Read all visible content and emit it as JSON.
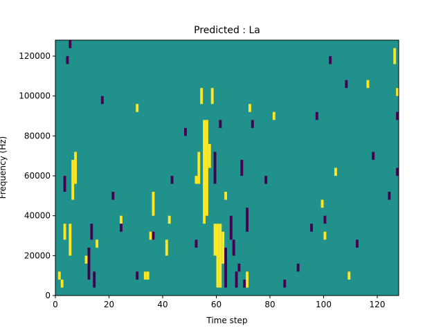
{
  "chart_data": {
    "type": "heatmap",
    "title": "Predicted : La",
    "xlabel": "Time step",
    "ylabel": "Frequency (Hz)",
    "xlim": [
      0,
      128
    ],
    "ylim": [
      0,
      128000
    ],
    "x_ticks": [
      0,
      20,
      40,
      60,
      80,
      100,
      120
    ],
    "y_ticks": [
      0,
      20000,
      40000,
      60000,
      80000,
      100000,
      120000
    ],
    "x_tick_labels": [
      "0",
      "20",
      "40",
      "60",
      "80",
      "100",
      "120"
    ],
    "y_tick_labels": [
      "0",
      "20000",
      "40000",
      "60000",
      "80000",
      "100000",
      "120000"
    ],
    "grid": false,
    "value_levels": [
      -1,
      0,
      1
    ],
    "colormap": {
      "-1": "#440154",
      "0": "#21918c",
      "1": "#fde725"
    },
    "background_value": 0,
    "bin_height_hz": 4000,
    "cells": [
      {
        "t": 60,
        "f0": 4000,
        "f1": 36000,
        "v": 1
      },
      {
        "t": 61,
        "f0": 4000,
        "f1": 36000,
        "v": 1
      },
      {
        "t": 55,
        "f0": 36000,
        "f1": 88000,
        "v": 1
      },
      {
        "t": 56,
        "f0": 40000,
        "f1": 88000,
        "v": 1
      },
      {
        "t": 53,
        "f0": 56000,
        "f1": 72000,
        "v": 1
      },
      {
        "t": 52,
        "f0": 56000,
        "f1": 60000,
        "v": 1
      },
      {
        "t": 57,
        "f0": 64000,
        "f1": 76000,
        "v": 1
      },
      {
        "t": 59,
        "f0": 20000,
        "f1": 36000,
        "v": 1
      },
      {
        "t": 62,
        "f0": 16000,
        "f1": 32000,
        "v": 1
      },
      {
        "t": 54,
        "f0": 96000,
        "f1": 104000,
        "v": 1
      },
      {
        "t": 58,
        "f0": 96000,
        "f1": 104000,
        "v": 1
      },
      {
        "t": 5,
        "f0": 20000,
        "f1": 36000,
        "v": 1
      },
      {
        "t": 6,
        "f0": 48000,
        "f1": 68000,
        "v": 1
      },
      {
        "t": 7,
        "f0": 56000,
        "f1": 72000,
        "v": 1
      },
      {
        "t": 3,
        "f0": 28000,
        "f1": 36000,
        "v": 1
      },
      {
        "t": 1,
        "f0": 8000,
        "f1": 12000,
        "v": 1
      },
      {
        "t": 2,
        "f0": 4000,
        "f1": 8000,
        "v": 1
      },
      {
        "t": 33,
        "f0": 8000,
        "f1": 12000,
        "v": 1
      },
      {
        "t": 34,
        "f0": 8000,
        "f1": 12000,
        "v": 1
      },
      {
        "t": 35,
        "f0": 28000,
        "f1": 32000,
        "v": 1
      },
      {
        "t": 36,
        "f0": 40000,
        "f1": 52000,
        "v": 1
      },
      {
        "t": 41,
        "f0": 20000,
        "f1": 28000,
        "v": 1
      },
      {
        "t": 42,
        "f0": 36000,
        "f1": 40000,
        "v": 1
      },
      {
        "t": 71,
        "f0": 4000,
        "f1": 12000,
        "v": 1
      },
      {
        "t": 72,
        "f0": 92000,
        "f1": 96000,
        "v": 1
      },
      {
        "t": 99,
        "f0": 44000,
        "f1": 48000,
        "v": 1
      },
      {
        "t": 100,
        "f0": 28000,
        "f1": 32000,
        "v": 1
      },
      {
        "t": 126,
        "f0": 116000,
        "f1": 124000,
        "v": 1
      },
      {
        "t": 127,
        "f0": 100000,
        "f1": 104000,
        "v": 1
      },
      {
        "t": 30,
        "f0": 92000,
        "f1": 96000,
        "v": 1
      },
      {
        "t": 24,
        "f0": 36000,
        "f1": 40000,
        "v": 1
      },
      {
        "t": 11,
        "f0": 16000,
        "f1": 20000,
        "v": 1
      },
      {
        "t": 15,
        "f0": 24000,
        "f1": 28000,
        "v": 1
      },
      {
        "t": 63,
        "f0": 48000,
        "f1": 52000,
        "v": 1
      },
      {
        "t": 81,
        "f0": 88000,
        "f1": 92000,
        "v": 1
      },
      {
        "t": 104,
        "f0": 60000,
        "f1": 64000,
        "v": 1
      },
      {
        "t": 109,
        "f0": 8000,
        "f1": 12000,
        "v": 1
      },
      {
        "t": 116,
        "f0": 104000,
        "f1": 108000,
        "v": 1
      },
      {
        "t": 63,
        "f0": 4000,
        "f1": 24000,
        "v": -1
      },
      {
        "t": 67,
        "f0": 4000,
        "f1": 12000,
        "v": -1
      },
      {
        "t": 68,
        "f0": 12000,
        "f1": 16000,
        "v": -1
      },
      {
        "t": 70,
        "f0": 4000,
        "f1": 8000,
        "v": -1
      },
      {
        "t": 59,
        "f0": 56000,
        "f1": 72000,
        "v": -1
      },
      {
        "t": 61,
        "f0": 84000,
        "f1": 88000,
        "v": -1
      },
      {
        "t": 69,
        "f0": 60000,
        "f1": 68000,
        "v": -1
      },
      {
        "t": 65,
        "f0": 28000,
        "f1": 40000,
        "v": -1
      },
      {
        "t": 66,
        "f0": 20000,
        "f1": 28000,
        "v": -1
      },
      {
        "t": 71,
        "f0": 32000,
        "f1": 44000,
        "v": -1
      },
      {
        "t": 73,
        "f0": 84000,
        "f1": 88000,
        "v": -1
      },
      {
        "t": 12,
        "f0": 8000,
        "f1": 24000,
        "v": -1
      },
      {
        "t": 13,
        "f0": 28000,
        "f1": 36000,
        "v": -1
      },
      {
        "t": 14,
        "f0": 4000,
        "f1": 12000,
        "v": -1
      },
      {
        "t": 3,
        "f0": 52000,
        "f1": 60000,
        "v": -1
      },
      {
        "t": 4,
        "f0": 116000,
        "f1": 120000,
        "v": -1
      },
      {
        "t": 5,
        "f0": 124000,
        "f1": 128000,
        "v": -1
      },
      {
        "t": 17,
        "f0": 96000,
        "f1": 100000,
        "v": -1
      },
      {
        "t": 24,
        "f0": 32000,
        "f1": 36000,
        "v": -1
      },
      {
        "t": 30,
        "f0": 8000,
        "f1": 12000,
        "v": -1
      },
      {
        "t": 43,
        "f0": 56000,
        "f1": 60000,
        "v": -1
      },
      {
        "t": 48,
        "f0": 80000,
        "f1": 84000,
        "v": -1
      },
      {
        "t": 52,
        "f0": 24000,
        "f1": 28000,
        "v": -1
      },
      {
        "t": 90,
        "f0": 12000,
        "f1": 16000,
        "v": -1
      },
      {
        "t": 95,
        "f0": 32000,
        "f1": 36000,
        "v": -1
      },
      {
        "t": 97,
        "f0": 88000,
        "f1": 92000,
        "v": -1
      },
      {
        "t": 102,
        "f0": 116000,
        "f1": 120000,
        "v": -1
      },
      {
        "t": 108,
        "f0": 104000,
        "f1": 108000,
        "v": -1
      },
      {
        "t": 112,
        "f0": 24000,
        "f1": 28000,
        "v": -1
      },
      {
        "t": 118,
        "f0": 68000,
        "f1": 72000,
        "v": -1
      },
      {
        "t": 124,
        "f0": 48000,
        "f1": 52000,
        "v": -1
      },
      {
        "t": 127,
        "f0": 60000,
        "f1": 64000,
        "v": -1
      },
      {
        "t": 127,
        "f0": 88000,
        "f1": 92000,
        "v": -1
      },
      {
        "t": 85,
        "f0": 4000,
        "f1": 8000,
        "v": -1
      },
      {
        "t": 100,
        "f0": 36000,
        "f1": 40000,
        "v": -1
      },
      {
        "t": 78,
        "f0": 56000,
        "f1": 60000,
        "v": -1
      },
      {
        "t": 21,
        "f0": 48000,
        "f1": 52000,
        "v": -1
      },
      {
        "t": 36,
        "f0": 28000,
        "f1": 32000,
        "v": -1
      }
    ]
  }
}
